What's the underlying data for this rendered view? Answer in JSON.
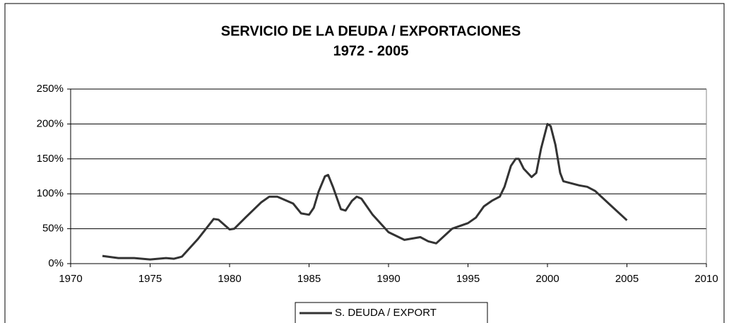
{
  "chart_data": {
    "type": "line",
    "title": "SERVICIO DE LA  DEUDA / EXPORTACIONES",
    "subtitle": "1972 - 2005",
    "xlim": [
      1970,
      2010
    ],
    "xticks": [
      1970,
      1975,
      1980,
      1985,
      1990,
      1995,
      2000,
      2005,
      2010
    ],
    "ylim": [
      0,
      250
    ],
    "yticks": [
      {
        "value": 0,
        "label": "0%"
      },
      {
        "value": 50,
        "label": "50%"
      },
      {
        "value": 100,
        "label": "100%"
      },
      {
        "value": 150,
        "label": "150%"
      },
      {
        "value": 200,
        "label": "200%"
      },
      {
        "value": 250,
        "label": "250%"
      }
    ],
    "grid": true,
    "legend": "bottom",
    "x": [
      1972,
      1973,
      1974,
      1975,
      1976,
      1976.5,
      1977,
      1978,
      1979,
      1979.3,
      1980,
      1980.3,
      1981,
      1982,
      1982.5,
      1983,
      1984,
      1984.5,
      1985,
      1985.3,
      1985.6,
      1986,
      1986.2,
      1986.5,
      1987,
      1987.3,
      1987.7,
      1988,
      1988.3,
      1989,
      1990,
      1991,
      1992,
      1992.5,
      1993,
      1994,
      1995,
      1995.5,
      1996,
      1996.5,
      1997,
      1997.3,
      1997.7,
      1998,
      1998.2,
      1998.5,
      1999,
      1999.3,
      1999.6,
      2000,
      2000.2,
      2000.5,
      2000.8,
      2001,
      2002,
      2002.5,
      2003,
      2004,
      2005
    ],
    "series": [
      {
        "name": "S. DEUDA / EXPORT",
        "color": "#333333",
        "values": [
          11,
          8,
          8,
          6,
          8,
          7,
          10,
          35,
          64,
          63,
          49,
          50,
          66,
          88,
          96,
          96,
          86,
          72,
          70,
          80,
          103,
          125,
          127,
          110,
          78,
          76,
          90,
          96,
          93,
          70,
          45,
          34,
          38,
          32,
          29,
          50,
          58,
          66,
          82,
          90,
          96,
          110,
          140,
          150,
          150,
          136,
          124,
          130,
          165,
          200,
          197,
          170,
          130,
          118,
          112,
          110,
          104,
          83,
          62
        ]
      }
    ]
  }
}
